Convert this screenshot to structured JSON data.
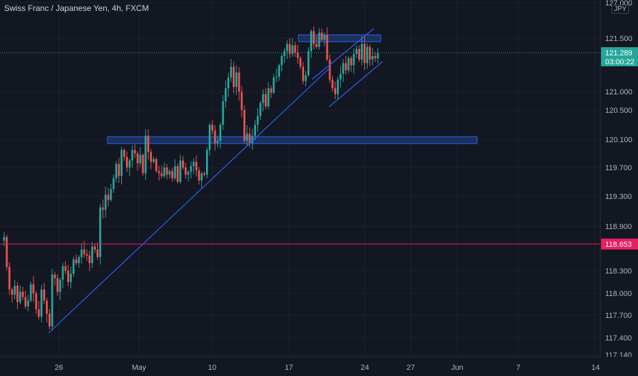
{
  "title": "Swiss Franc / Japanese Yen, 4h, FXCM",
  "currency_unit": "JPY",
  "colors": {
    "background": "#131722",
    "up": "#26a69a",
    "down": "#ef5350",
    "trendline": "#2962ff",
    "zone_fill": "#1e3a6e",
    "zone_border": "#2962ff",
    "last_price_bg": "#26a69a",
    "level_line": "#e91e63",
    "level_label_bg": "#e91e63",
    "axis_text": "#b2b5be"
  },
  "price_axis": {
    "tick_labels": [
      "127.000",
      "121.500",
      "121.000",
      "120.500",
      "120.100",
      "119.700",
      "119.300",
      "118.900",
      "118.300",
      "118.000",
      "117.700",
      "117.400",
      "117.140"
    ]
  },
  "time_axis": {
    "tick_labels": [
      "26",
      "May",
      "10",
      "17",
      "24",
      "27",
      "Jun",
      "7",
      "14"
    ]
  },
  "last_price": {
    "value": "121.289",
    "countdown": "03:00:22"
  },
  "horizontal_level": {
    "value": "118.653"
  },
  "chart_data": {
    "type": "candlestick",
    "title": "Swiss Franc / Japanese Yen, 4h, FXCM",
    "y_unit": "JPY",
    "ylim": [
      117.14,
      122.0
    ],
    "x_ticks": [
      "26",
      "May",
      "10",
      "17",
      "24",
      "27",
      "Jun",
      "7",
      "14"
    ],
    "closes": [
      118.75,
      118.35,
      118.05,
      117.98,
      118.1,
      117.88,
      118.02,
      117.95,
      117.82,
      117.9,
      118.12,
      118.0,
      117.78,
      117.68,
      118.05,
      117.9,
      117.72,
      117.55,
      118.25,
      118.2,
      118.02,
      118.18,
      118.36,
      118.3,
      118.15,
      118.26,
      118.45,
      118.4,
      118.48,
      118.58,
      118.52,
      118.5,
      118.4,
      118.62,
      118.58,
      118.48,
      119.15,
      119.12,
      119.32,
      119.25,
      119.4,
      119.55,
      119.75,
      119.58,
      119.95,
      119.85,
      119.7,
      119.8,
      119.95,
      119.9,
      119.76,
      119.88,
      119.62,
      120.15,
      119.92,
      119.78,
      119.82,
      119.65,
      119.62,
      119.58,
      119.7,
      119.6,
      119.65,
      119.55,
      119.72,
      119.5,
      119.8,
      119.7,
      119.6,
      119.64,
      119.72,
      119.78,
      119.66,
      119.52,
      119.62,
      119.6,
      119.95,
      120.3,
      120.22,
      120.05,
      120.08,
      120.3,
      120.62,
      120.8,
      120.95,
      121.1,
      120.82,
      121.02,
      120.75,
      120.5,
      120.08,
      120.18,
      120.05,
      120.15,
      120.3,
      120.42,
      120.6,
      120.72,
      120.55,
      120.8,
      120.74,
      120.95,
      120.96,
      121.12,
      121.25,
      121.32,
      121.42,
      121.28,
      121.4,
      121.3,
      121.22,
      121.1,
      120.9,
      120.98,
      121.32,
      121.6,
      121.42,
      121.38,
      121.58,
      121.48,
      121.55,
      121.2,
      120.92,
      120.8,
      120.72,
      120.92,
      121.0,
      121.15,
      121.05,
      121.22,
      121.12,
      121.28,
      121.35,
      121.2,
      121.42,
      121.15,
      121.38,
      121.2,
      121.25,
      121.22,
      121.289
    ],
    "annotations": [
      {
        "type": "resistance-zone",
        "price_range": [
          121.42,
          121.53
        ]
      },
      {
        "type": "support-resistance-zone",
        "price_range": [
          120.04,
          120.14
        ]
      },
      {
        "type": "ascending-trendline",
        "from": {
          "bar": 13,
          "price": 117.45
        },
        "to": {
          "bar": 105,
          "price": 121.23
        }
      },
      {
        "type": "rising-wedge-upper",
        "from": {
          "bar": 114,
          "price": 120.92
        },
        "to": {
          "bar": 134,
          "price": 121.66
        }
      },
      {
        "type": "rising-wedge-lower",
        "from": {
          "bar": 119,
          "price": 120.55
        },
        "to": {
          "bar": 139,
          "price": 121.18
        }
      },
      {
        "type": "horizontal-level",
        "price": 118.653
      }
    ]
  }
}
